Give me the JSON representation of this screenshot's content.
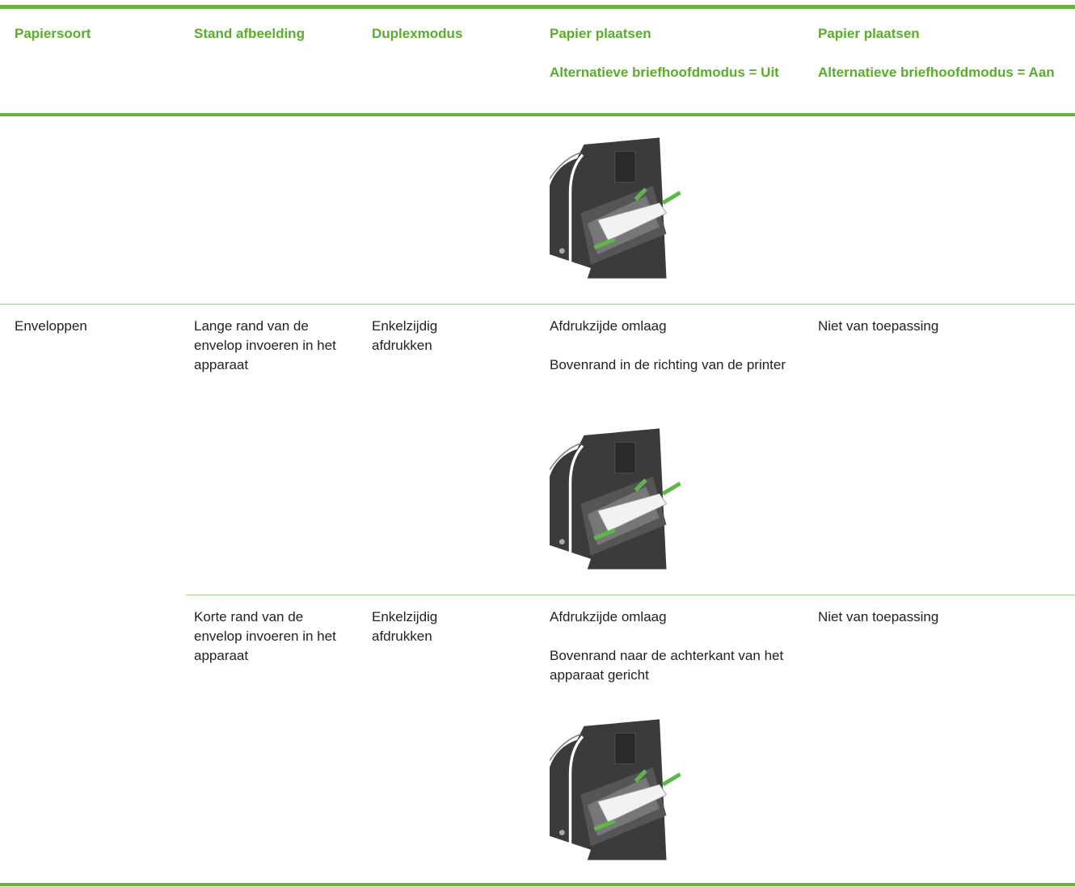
{
  "table": {
    "header": [
      {
        "title": "Papiersoort"
      },
      {
        "title": "Stand afbeelding"
      },
      {
        "title": "Duplexmodus"
      },
      {
        "title": "Papier plaatsen",
        "subtitle": "Alternatieve briefhoofdmodus = Uit"
      },
      {
        "title": "Papier plaatsen",
        "subtitle": "Alternatieve briefhoofdmodus = Aan"
      }
    ],
    "rows": [
      {
        "paper_type": "Enveloppen",
        "orientation": "Lange rand van de envelop invoeren in het apparaat",
        "duplex": "Enkelzijdig afdrukken",
        "loading_off": [
          "Afdrukzijde omlaag",
          "Bovenrand in de richting van de printer"
        ],
        "loading_on": "Niet van toepassing"
      },
      {
        "orientation": "Korte rand van de envelop invoeren in het apparaat",
        "duplex": "Enkelzijdig afdrukken",
        "loading_off": [
          "Afdrukzijde omlaag",
          "Bovenrand naar de achterkant van het apparaat gericht"
        ],
        "loading_on": "Niet van toepassing"
      }
    ]
  }
}
